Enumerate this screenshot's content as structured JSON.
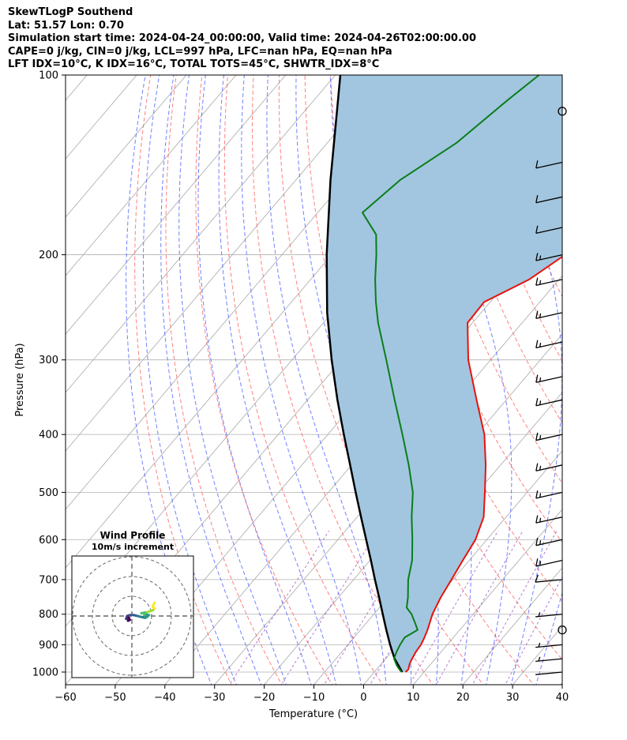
{
  "title_lines": [
    "SkewTLogP Southend",
    "Lat: 51.57   Lon: 0.70",
    "Simulation start time: 2024-04-24_00:00:00, Valid time: 2024-04-26T02:00:00.00",
    "CAPE=0 j/kg, CIN=0 j/kg, LCL=997 hPa, LFC=nan hPa, EQ=nan hPa",
    "LFT IDX=10°C, K IDX=16°C, TOTAL TOTS=45°C, SHWTR_IDX=8°C"
  ],
  "chart_data": {
    "type": "skewt",
    "xlabel": "Temperature (°C)",
    "ylabel": "Pressure (hPa)",
    "xlim": [
      -60,
      40
    ],
    "ylim": [
      1050,
      100
    ],
    "xticks": [
      -60,
      -50,
      -40,
      -30,
      -20,
      -10,
      0,
      10,
      20,
      30,
      40
    ],
    "yticks": [
      100,
      200,
      300,
      400,
      500,
      600,
      700,
      800,
      900,
      1000
    ],
    "grid": true,
    "colors": {
      "temperature": "#e8120c",
      "dewpoint": "#0a7d1a",
      "parcel": "#000000",
      "shade": "#a2c6df",
      "dry_adiabat": "#ff6b6b",
      "moist_adiabat": "#5060ff",
      "mixing_ratio": "#9040c0",
      "isotherm": "#a8a8a8"
    },
    "series": [
      {
        "key": "temperature",
        "points": [
          [
            1000,
            6.3
          ],
          [
            990,
            6.4
          ],
          [
            975,
            5.9
          ],
          [
            960,
            5.5
          ],
          [
            925,
            4.9
          ],
          [
            900,
            4.7
          ],
          [
            880,
            4.3
          ],
          [
            850,
            3.5
          ],
          [
            820,
            2.5
          ],
          [
            800,
            1.8
          ],
          [
            750,
            0.6
          ],
          [
            700,
            -0.3
          ],
          [
            650,
            -1.3
          ],
          [
            600,
            -2.3
          ],
          [
            550,
            -4.5
          ],
          [
            500,
            -8.5
          ],
          [
            450,
            -13
          ],
          [
            400,
            -18.5
          ],
          [
            350,
            -26
          ],
          [
            300,
            -34.5
          ],
          [
            260,
            -41
          ],
          [
            240,
            -41.2
          ],
          [
            220,
            -36
          ],
          [
            200,
            -33
          ],
          [
            180,
            -30
          ],
          [
            150,
            -25
          ],
          [
            130,
            -23
          ],
          [
            115,
            -22
          ],
          [
            100,
            -22
          ]
        ]
      },
      {
        "key": "dewpoint",
        "points": [
          [
            1000,
            5.5
          ],
          [
            990,
            4.6
          ],
          [
            975,
            3.4
          ],
          [
            950,
            1.7
          ],
          [
            925,
            1.0
          ],
          [
            900,
            0.5
          ],
          [
            875,
            0.2
          ],
          [
            850,
            1.5
          ],
          [
            830,
            0
          ],
          [
            800,
            -2.4
          ],
          [
            780,
            -4.5
          ],
          [
            750,
            -6
          ],
          [
            700,
            -9
          ],
          [
            650,
            -11.5
          ],
          [
            600,
            -15
          ],
          [
            550,
            -19
          ],
          [
            500,
            -23
          ],
          [
            450,
            -28.5
          ],
          [
            400,
            -35
          ],
          [
            350,
            -42.5
          ],
          [
            300,
            -51
          ],
          [
            260,
            -59
          ],
          [
            240,
            -63
          ],
          [
            220,
            -67
          ],
          [
            200,
            -71
          ],
          [
            185,
            -74.5
          ],
          [
            170,
            -81
          ],
          [
            150,
            -79
          ],
          [
            130,
            -74
          ],
          [
            110,
            -71
          ],
          [
            100,
            -69
          ]
        ]
      },
      {
        "key": "parcel",
        "points": [
          [
            1000,
            5.5
          ],
          [
            997,
            5.4
          ],
          [
            950,
            1.8
          ],
          [
            900,
            -1.5
          ],
          [
            850,
            -4.8
          ],
          [
            800,
            -8.2
          ],
          [
            750,
            -11.8
          ],
          [
            700,
            -15.7
          ],
          [
            650,
            -19.8
          ],
          [
            600,
            -24.3
          ],
          [
            550,
            -29.2
          ],
          [
            500,
            -34.5
          ],
          [
            450,
            -40.3
          ],
          [
            400,
            -46.8
          ],
          [
            350,
            -54
          ],
          [
            300,
            -62
          ],
          [
            250,
            -71
          ],
          [
            200,
            -81
          ],
          [
            150,
            -93
          ],
          [
            100,
            -109
          ]
        ]
      }
    ],
    "wind_barbs": [
      {
        "pressure": 1000,
        "speed_kt": 2
      },
      {
        "pressure": 950,
        "speed_kt": 5
      },
      {
        "pressure": 900,
        "speed_kt": 5
      },
      {
        "pressure": 850,
        "speed_kt": 0
      },
      {
        "pressure": 800,
        "speed_kt": 5
      },
      {
        "pressure": 700,
        "speed_kt": 10
      },
      {
        "pressure": 650,
        "speed_kt": 15
      },
      {
        "pressure": 600,
        "speed_kt": 15
      },
      {
        "pressure": 550,
        "speed_kt": 15
      },
      {
        "pressure": 500,
        "speed_kt": 15
      },
      {
        "pressure": 450,
        "speed_kt": 15
      },
      {
        "pressure": 400,
        "speed_kt": 15
      },
      {
        "pressure": 350,
        "speed_kt": 15
      },
      {
        "pressure": 320,
        "speed_kt": 15
      },
      {
        "pressure": 280,
        "speed_kt": 15
      },
      {
        "pressure": 250,
        "speed_kt": 15
      },
      {
        "pressure": 220,
        "speed_kt": 15
      },
      {
        "pressure": 200,
        "speed_kt": 15
      },
      {
        "pressure": 180,
        "speed_kt": 10
      },
      {
        "pressure": 160,
        "speed_kt": 10
      },
      {
        "pressure": 140,
        "speed_kt": 10
      },
      {
        "pressure": 115,
        "speed_kt": 0
      }
    ],
    "hodograph": {
      "title": "Wind Profile",
      "subtitle": "10m/s increment",
      "rings_ms": [
        10,
        20,
        30
      ],
      "track_uv": [
        [
          -1,
          -2
        ],
        [
          -2,
          -2.5
        ],
        [
          -1.5,
          -1
        ],
        [
          -3,
          -1.5
        ],
        [
          -2.5,
          0
        ],
        [
          -1,
          0.5
        ],
        [
          1,
          0.5
        ],
        [
          3,
          0
        ],
        [
          5,
          -0.5
        ],
        [
          7,
          -1
        ],
        [
          8,
          -0.5
        ],
        [
          9,
          0.5
        ],
        [
          7,
          1
        ],
        [
          5,
          1.5
        ],
        [
          8,
          2
        ],
        [
          11,
          3
        ],
        [
          12,
          4
        ],
        [
          11,
          5
        ],
        [
          12,
          7
        ]
      ]
    }
  }
}
